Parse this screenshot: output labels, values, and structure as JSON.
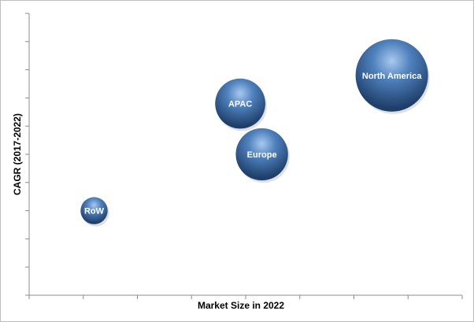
{
  "chart_data": {
    "type": "bubble",
    "xlabel": "Market Size in 2022",
    "ylabel": "CAGR (2017-2022)",
    "x_tick_count": 8,
    "y_tick_count": 10,
    "grid": false,
    "bubble_color": "#3f6fa6",
    "points": [
      {
        "label": "North America",
        "x": 6.7,
        "y": 7.8,
        "size": 100
      },
      {
        "label": "APAC",
        "x": 3.9,
        "y": 6.8,
        "size": 48
      },
      {
        "label": "Europe",
        "x": 4.3,
        "y": 5.0,
        "size": 52
      },
      {
        "label": "RoW",
        "x": 1.2,
        "y": 3.0,
        "size": 14
      }
    ]
  }
}
